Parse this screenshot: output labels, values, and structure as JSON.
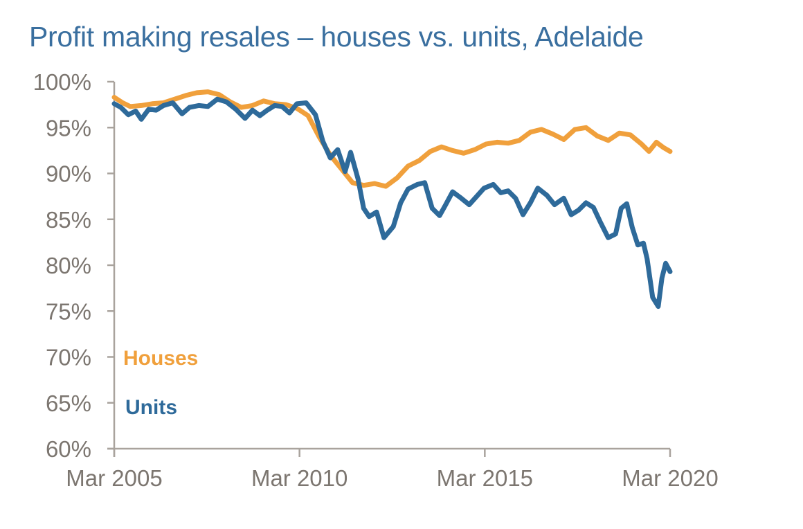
{
  "title": "Profit making resales – houses vs. units, Adelaide",
  "colors": {
    "houses": "#f0a03c",
    "units": "#2e6a9a",
    "title": "#3a6f9f",
    "axis": "#a9a39d",
    "tick_text": "#7c7670"
  },
  "chart_data": {
    "type": "line",
    "title": "Profit making resales – houses vs. units, Adelaide",
    "xlabel": "",
    "ylabel": "",
    "ylim": [
      60,
      100
    ],
    "xlim": [
      2005.17,
      2020.17
    ],
    "grid": false,
    "legend_position": "inside-lower-left",
    "y_ticks": [
      "100%",
      "95%",
      "90%",
      "85%",
      "80%",
      "75%",
      "70%",
      "65%",
      "60%"
    ],
    "y_tick_values": [
      100,
      95,
      90,
      85,
      80,
      75,
      70,
      65,
      60
    ],
    "x_ticks": [
      "Mar 2005",
      "Mar 2010",
      "Mar 2015",
      "Mar 2020"
    ],
    "x_tick_values": [
      2005.17,
      2010.17,
      2015.17,
      2020.17
    ],
    "series": [
      {
        "name": "Houses",
        "color": "#f0a03c",
        "x": [
          2005.17,
          2005.4,
          2005.6,
          2005.9,
          2006.2,
          2006.5,
          2006.8,
          2007.1,
          2007.4,
          2007.7,
          2008.0,
          2008.3,
          2008.6,
          2008.9,
          2009.2,
          2009.5,
          2009.8,
          2010.1,
          2010.4,
          2010.7,
          2011.0,
          2011.3,
          2011.6,
          2011.9,
          2012.2,
          2012.5,
          2012.8,
          2013.1,
          2013.4,
          2013.7,
          2014.0,
          2014.3,
          2014.6,
          2014.9,
          2015.2,
          2015.5,
          2015.8,
          2016.1,
          2016.4,
          2016.7,
          2017.0,
          2017.3,
          2017.6,
          2017.9,
          2018.2,
          2018.5,
          2018.8,
          2019.1,
          2019.4,
          2019.6,
          2019.8,
          2020.0,
          2020.17
        ],
        "values": [
          98.3,
          97.7,
          97.3,
          97.4,
          97.6,
          97.7,
          98.1,
          98.5,
          98.8,
          98.9,
          98.6,
          97.8,
          97.2,
          97.4,
          97.9,
          97.6,
          97.5,
          97.1,
          96.3,
          94.0,
          92.0,
          90.5,
          89.0,
          88.7,
          88.9,
          88.6,
          89.5,
          90.8,
          91.4,
          92.4,
          92.9,
          92.5,
          92.2,
          92.6,
          93.2,
          93.4,
          93.3,
          93.6,
          94.5,
          94.8,
          94.3,
          93.7,
          94.8,
          95.0,
          94.1,
          93.6,
          94.4,
          94.2,
          93.2,
          92.4,
          93.4,
          92.8,
          92.4
        ]
      },
      {
        "name": "Units",
        "color": "#2e6a9a",
        "x": [
          2005.17,
          2005.35,
          2005.55,
          2005.75,
          2005.9,
          2006.1,
          2006.3,
          2006.5,
          2006.75,
          2007.0,
          2007.2,
          2007.45,
          2007.7,
          2007.95,
          2008.2,
          2008.45,
          2008.7,
          2008.9,
          2009.1,
          2009.3,
          2009.5,
          2009.7,
          2009.9,
          2010.1,
          2010.35,
          2010.6,
          2010.8,
          2011.0,
          2011.2,
          2011.4,
          2011.55,
          2011.75,
          2011.9,
          2012.05,
          2012.25,
          2012.45,
          2012.7,
          2012.9,
          2013.1,
          2013.35,
          2013.55,
          2013.75,
          2013.95,
          2014.1,
          2014.3,
          2014.5,
          2014.75,
          2014.95,
          2015.15,
          2015.4,
          2015.6,
          2015.8,
          2016.0,
          2016.2,
          2016.4,
          2016.6,
          2016.85,
          2017.05,
          2017.3,
          2017.5,
          2017.7,
          2017.9,
          2018.1,
          2018.3,
          2018.5,
          2018.7,
          2018.85,
          2019.0,
          2019.15,
          2019.3,
          2019.45,
          2019.55,
          2019.7,
          2019.85,
          2019.95,
          2020.05,
          2020.17
        ],
        "values": [
          97.6,
          97.2,
          96.4,
          96.8,
          95.9,
          97.0,
          96.9,
          97.4,
          97.7,
          96.5,
          97.2,
          97.4,
          97.3,
          98.1,
          97.8,
          97.0,
          96.0,
          96.9,
          96.3,
          96.9,
          97.4,
          97.3,
          96.6,
          97.6,
          97.7,
          96.4,
          93.5,
          91.7,
          92.6,
          90.2,
          92.3,
          89.4,
          86.2,
          85.3,
          85.8,
          83.0,
          84.2,
          86.8,
          88.3,
          88.8,
          89.0,
          86.2,
          85.4,
          86.5,
          88.0,
          87.4,
          86.6,
          87.5,
          88.4,
          88.8,
          87.9,
          88.1,
          87.3,
          85.5,
          86.8,
          88.4,
          87.6,
          86.6,
          87.3,
          85.5,
          86.0,
          86.8,
          86.3,
          84.6,
          83.0,
          83.4,
          86.2,
          86.7,
          84.1,
          82.2,
          82.4,
          80.7,
          76.5,
          75.5,
          78.6,
          80.2,
          79.3
        ]
      }
    ]
  },
  "legend": {
    "houses_label": "Houses",
    "units_label": "Units"
  }
}
